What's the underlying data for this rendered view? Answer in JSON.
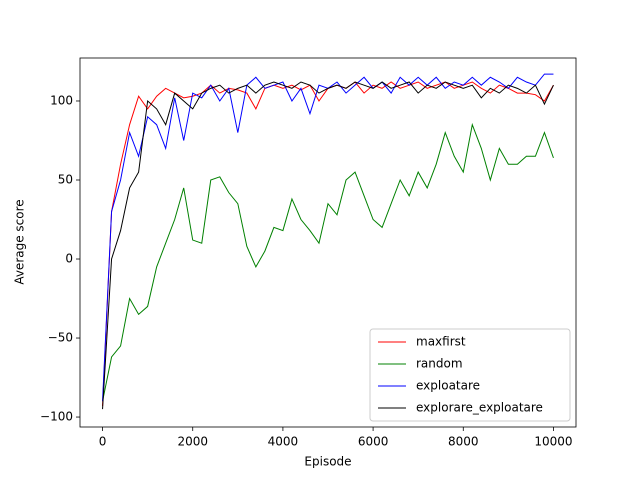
{
  "chart_data": {
    "type": "line",
    "x_label": "Episode",
    "y_label": "Average score",
    "x": [
      0,
      200,
      400,
      600,
      800,
      1000,
      1200,
      1400,
      1600,
      1800,
      2000,
      2200,
      2400,
      2600,
      2800,
      3000,
      3200,
      3400,
      3600,
      3800,
      4000,
      4200,
      4400,
      4600,
      4800,
      5000,
      5200,
      5400,
      5600,
      5800,
      6000,
      6200,
      6400,
      6600,
      6800,
      7000,
      7200,
      7400,
      7600,
      7800,
      8000,
      8200,
      8400,
      8600,
      8800,
      9000,
      9200,
      9400,
      9600,
      9800,
      10000
    ],
    "series": [
      {
        "name": "maxfirst",
        "color": "#ff0000",
        "values": [
          -93,
          30,
          60,
          85,
          103,
          95,
          103,
          108,
          105,
          102,
          103,
          105,
          110,
          105,
          108,
          107,
          105,
          95,
          108,
          110,
          108,
          110,
          107,
          110,
          100,
          108,
          110,
          108,
          112,
          105,
          110,
          108,
          112,
          108,
          110,
          112,
          108,
          110,
          112,
          108,
          110,
          112,
          108,
          105,
          110,
          108,
          105,
          105,
          104,
          100,
          110
        ]
      },
      {
        "name": "random",
        "color": "#008000",
        "values": [
          -90,
          -62,
          -55,
          -25,
          -35,
          -30,
          -5,
          10,
          25,
          45,
          12,
          10,
          50,
          52,
          42,
          35,
          8,
          -5,
          5,
          20,
          18,
          38,
          25,
          18,
          10,
          35,
          28,
          50,
          55,
          40,
          25,
          20,
          35,
          50,
          40,
          55,
          45,
          60,
          80,
          65,
          55,
          85,
          70,
          50,
          70,
          60,
          60,
          65,
          65,
          80,
          64
        ]
      },
      {
        "name": "exploatare",
        "color": "#0000ff",
        "values": [
          -90,
          30,
          50,
          80,
          65,
          90,
          85,
          70,
          102,
          75,
          105,
          102,
          110,
          100,
          108,
          80,
          110,
          115,
          108,
          110,
          112,
          100,
          108,
          92,
          110,
          108,
          112,
          105,
          110,
          115,
          108,
          112,
          105,
          115,
          110,
          115,
          110,
          115,
          108,
          112,
          110,
          115,
          110,
          115,
          112,
          108,
          115,
          112,
          110,
          117,
          117
        ]
      },
      {
        "name": "explorare_exploatare",
        "color": "#000000",
        "values": [
          -95,
          0,
          18,
          45,
          55,
          100,
          95,
          85,
          105,
          100,
          95,
          105,
          108,
          110,
          105,
          108,
          110,
          105,
          110,
          112,
          110,
          108,
          112,
          110,
          105,
          108,
          110,
          108,
          112,
          110,
          108,
          112,
          108,
          110,
          112,
          105,
          110,
          108,
          112,
          110,
          108,
          110,
          102,
          108,
          105,
          110,
          108,
          105,
          110,
          98,
          110
        ]
      }
    ],
    "xlim": [
      -500,
      10500
    ],
    "ylim": [
      -106.3,
      127.2
    ],
    "xticks": [
      0,
      2000,
      4000,
      6000,
      8000,
      10000
    ],
    "yticks": [
      {
        "value": -100,
        "label": "−100"
      },
      {
        "value": -50,
        "label": "−50"
      },
      0,
      50,
      100
    ],
    "legend": "lower right"
  }
}
